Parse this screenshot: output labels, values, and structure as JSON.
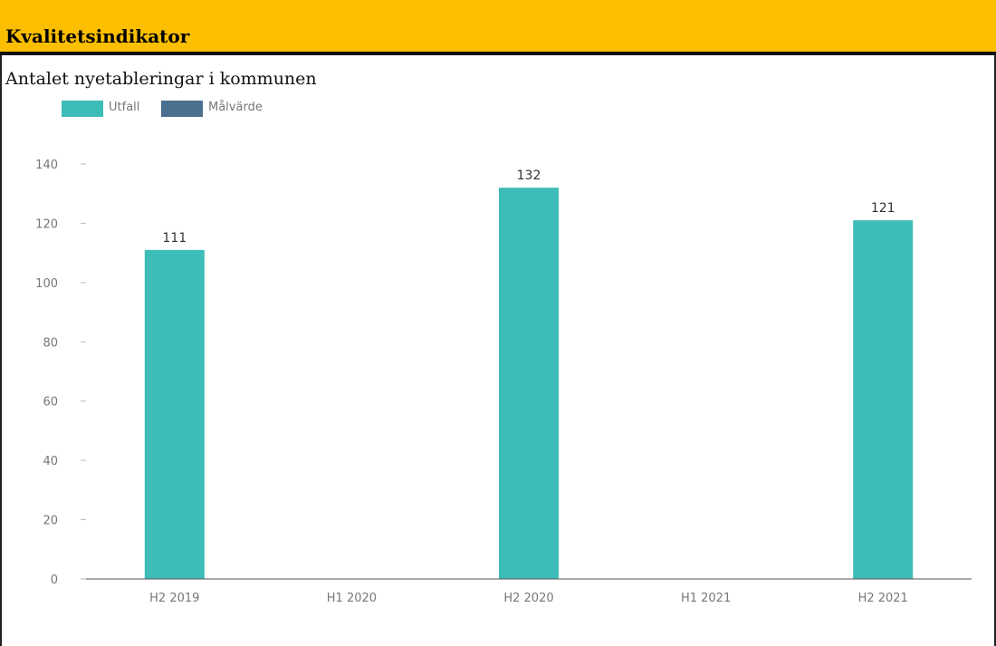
{
  "header": {
    "title": "Kvalitetsindikator"
  },
  "chart_data": {
    "type": "bar",
    "title": "Antalet nyetableringar i kommunen",
    "categories": [
      "H2 2019",
      "H1 2020",
      "H2 2020",
      "H1 2021",
      "H2 2021"
    ],
    "series": [
      {
        "name": "Utfall",
        "values": [
          111,
          null,
          132,
          null,
          121
        ],
        "color": "#3dbcb8"
      },
      {
        "name": "Målvärde",
        "values": [
          null,
          null,
          null,
          null,
          null
        ],
        "color": "#4a6f8f"
      }
    ],
    "data_labels": [
      "111",
      "",
      "132",
      "",
      "121"
    ],
    "y_ticks": [
      0,
      20,
      40,
      60,
      80,
      100,
      120,
      140
    ],
    "ylim": [
      0,
      140
    ],
    "xlabel": "",
    "ylabel": "",
    "legend_position": "top-left",
    "grid": false
  }
}
